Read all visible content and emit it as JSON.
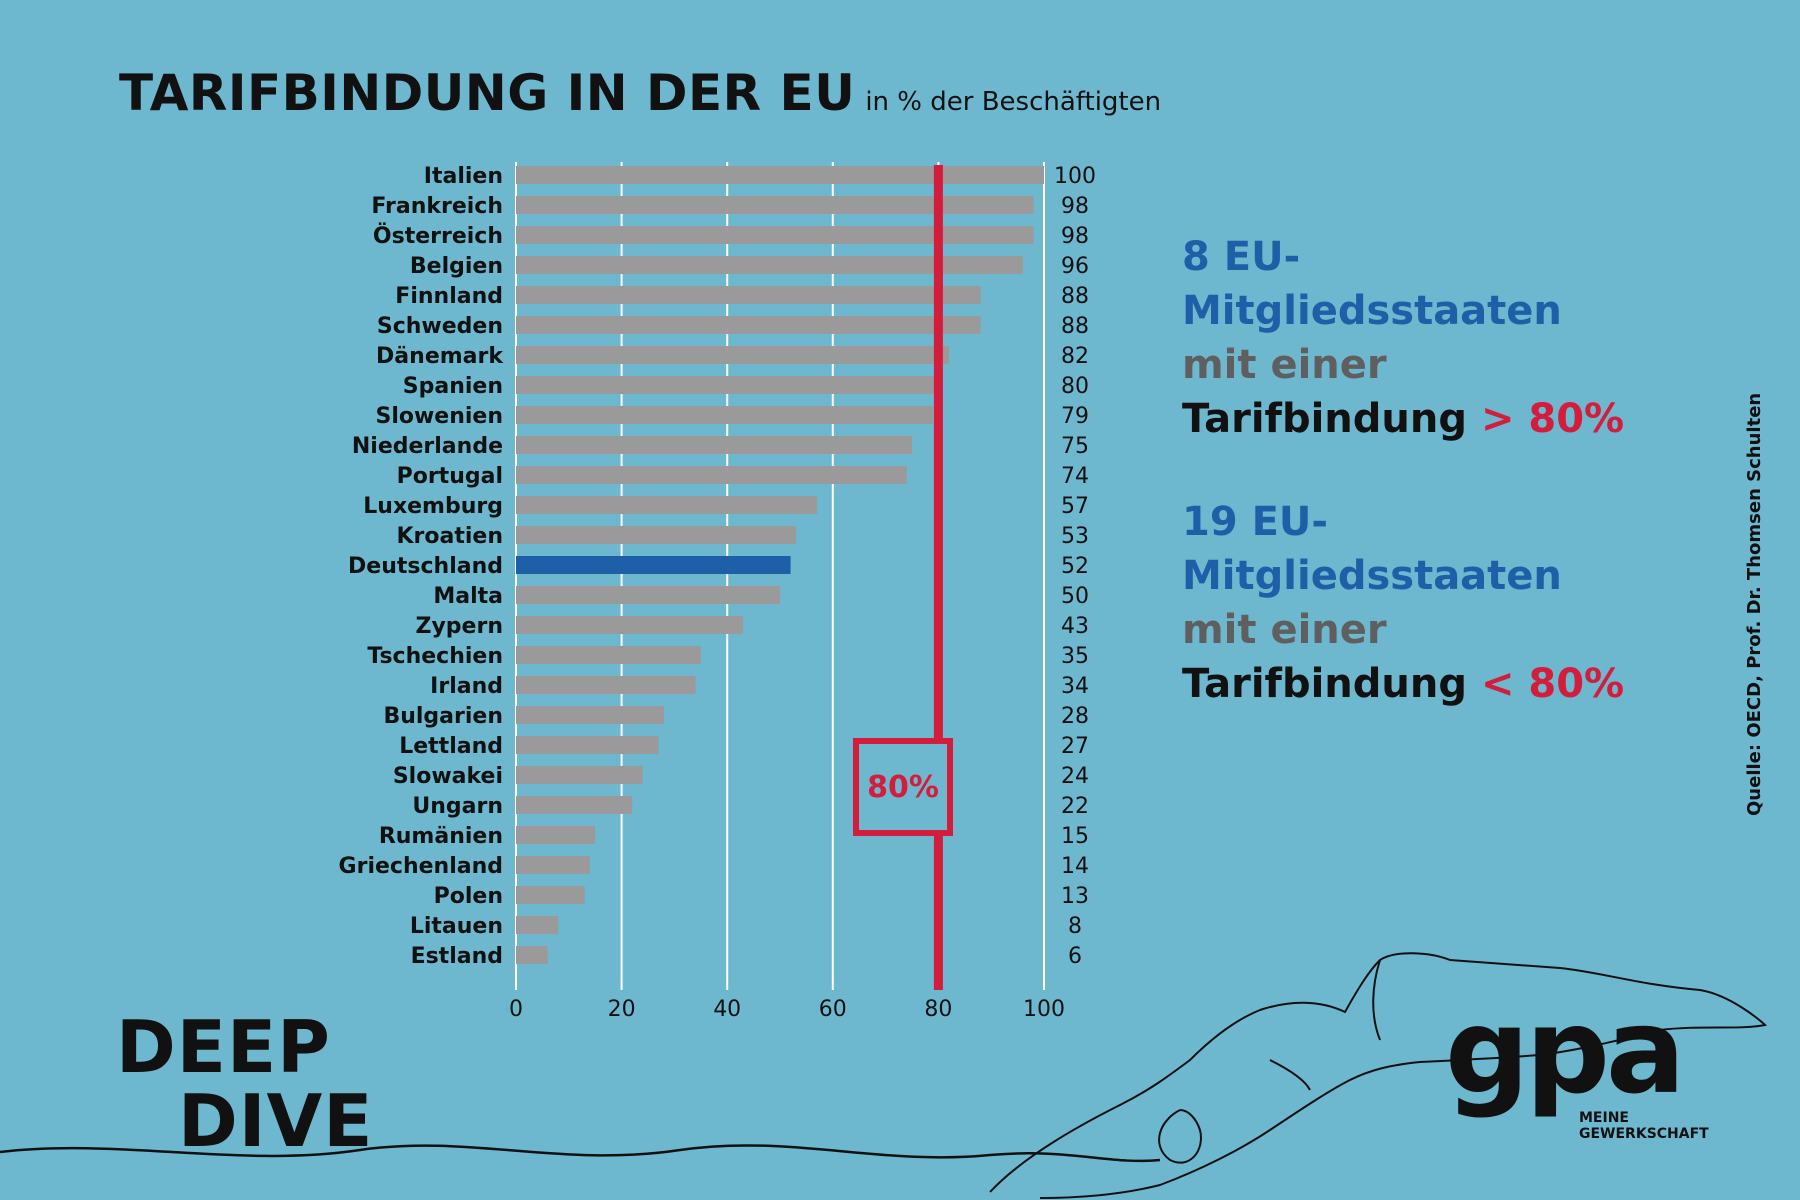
{
  "header": {
    "title": "TARIFBINDUNG IN DER EU",
    "subtitle": "in % der Beschäftigten"
  },
  "colors": {
    "background": "#6db8cf",
    "bar": "#9a9a9a",
    "highlight_bar": "#1f5fa8",
    "threshold": "#d41c3c",
    "grid": "#ffffff"
  },
  "chart_data": {
    "type": "bar",
    "orientation": "horizontal",
    "categories": [
      "Italien",
      "Frankreich",
      "Österreich",
      "Belgien",
      "Finnland",
      "Schweden",
      "Dänemark",
      "Spanien",
      "Slowenien",
      "Niederlande",
      "Portugal",
      "Luxemburg",
      "Kroatien",
      "Deutschland",
      "Malta",
      "Zypern",
      "Tschechien",
      "Irland",
      "Bulgarien",
      "Lettland",
      "Slowakei",
      "Ungarn",
      "Rumänien",
      "Griechenland",
      "Polen",
      "Litauen",
      "Estland"
    ],
    "values": [
      100,
      98,
      98,
      96,
      88,
      88,
      82,
      80,
      79,
      75,
      74,
      57,
      53,
      52,
      50,
      43,
      35,
      34,
      28,
      27,
      24,
      22,
      15,
      14,
      13,
      8,
      6
    ],
    "highlight": "Deutschland",
    "xlim": [
      0,
      100
    ],
    "xticks": [
      0,
      20,
      40,
      60,
      80,
      100
    ],
    "grid": true,
    "reference_line": {
      "value": 80,
      "label": "80%"
    }
  },
  "summary": [
    {
      "line1": "8 EU-",
      "line2": "Mitgliedsstaaten",
      "line3": "mit einer",
      "line4": "Tarifbindung",
      "symbol": ">",
      "threshold": "80%"
    },
    {
      "line1": "19 EU-",
      "line2": "Mitgliedsstaaten",
      "line3": "mit einer",
      "line4": "Tarifbindung",
      "symbol": "<",
      "threshold": "80%"
    }
  ],
  "source": "Quelle:  OECD, Prof. Dr. Thomsen Schulten",
  "branding": {
    "deep_dive": [
      "DEEP",
      "DIVE"
    ],
    "logo_word": "gpa",
    "logo_tagline": [
      "MEINE",
      "GEWERKSCHAFT"
    ]
  }
}
